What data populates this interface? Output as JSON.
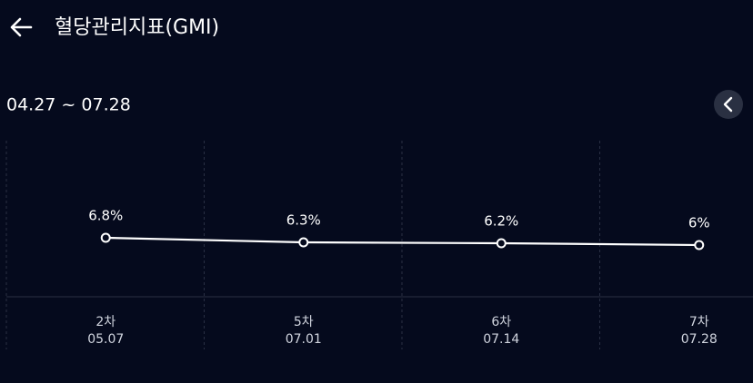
{
  "header": {
    "title": "혈당관리지표(GMI)"
  },
  "date_range": "04.27 ~ 07.28",
  "chart_data": {
    "type": "line",
    "categories": [
      "2차",
      "5차",
      "6차",
      "7차"
    ],
    "dates": [
      "05.07",
      "07.01",
      "07.14",
      "07.28"
    ],
    "values": [
      6.8,
      6.3,
      6.2,
      6
    ],
    "value_labels": [
      "6.8%",
      "6.3%",
      "6.2%",
      "6%"
    ],
    "color": "#ffffff"
  }
}
